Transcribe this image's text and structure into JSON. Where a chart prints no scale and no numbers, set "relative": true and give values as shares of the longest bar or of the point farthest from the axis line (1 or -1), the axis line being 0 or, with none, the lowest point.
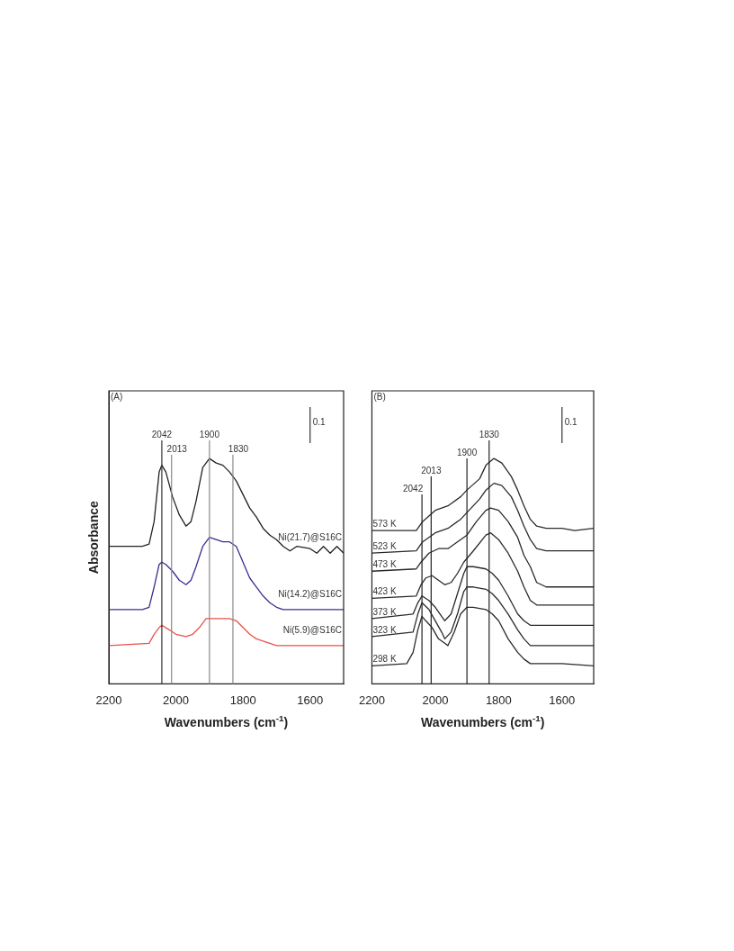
{
  "chart_data": [
    {
      "type": "line",
      "relative": true,
      "xlabel": "Wavenumbers (cm$^{-1}$)",
      "ylabel": "Absorbance",
      "xlim": [
        2200,
        1500
      ],
      "xticks": [
        2200,
        2000,
        1800,
        1600
      ],
      "tick_labels": "x",
      "legend": false,
      "grid": false,
      "annotations": [
        "(A)",
        "0.1"
      ],
      "ref_lines": [
        {
          "axis": "x",
          "value": 2042,
          "label": "2042",
          "color": "#333333"
        },
        {
          "axis": "x",
          "value": 2013,
          "label": "2013",
          "color": "#8a8a8a"
        },
        {
          "axis": "x",
          "value": 1900,
          "label": "1900",
          "color": "#8a8a8a"
        },
        {
          "axis": "x",
          "value": 1830,
          "label": "1830",
          "color": "#8a8a8a"
        }
      ],
      "series": [
        {
          "name": "Ni(21.7)@S16C",
          "color": "#222222",
          "x": [
            2200,
            2100,
            2080,
            2065,
            2050,
            2042,
            2030,
            2010,
            1990,
            1970,
            1955,
            1940,
            1920,
            1900,
            1880,
            1860,
            1840,
            1820,
            1800,
            1780,
            1760,
            1740,
            1720,
            1700,
            1680,
            1660,
            1640,
            1600,
            1580,
            1560,
            1540,
            1520,
            1500
          ],
          "values": [
            0.61,
            0.61,
            0.62,
            0.72,
            0.94,
            0.97,
            0.94,
            0.83,
            0.75,
            0.7,
            0.72,
            0.81,
            0.96,
            1,
            0.98,
            0.97,
            0.94,
            0.9,
            0.84,
            0.78,
            0.74,
            0.69,
            0.66,
            0.64,
            0.61,
            0.59,
            0.61,
            0.6,
            0.58,
            0.61,
            0.58,
            0.61,
            0.58
          ]
        },
        {
          "name": "Ni(14.2)@S16C",
          "color": "#3a2f8f",
          "x": [
            2200,
            2100,
            2080,
            2065,
            2050,
            2042,
            2030,
            2010,
            1990,
            1970,
            1955,
            1940,
            1920,
            1900,
            1880,
            1860,
            1840,
            1820,
            1800,
            1780,
            1760,
            1740,
            1720,
            1700,
            1680,
            1600,
            1500
          ],
          "values": [
            0.33,
            0.33,
            0.34,
            0.43,
            0.53,
            0.54,
            0.53,
            0.5,
            0.46,
            0.44,
            0.46,
            0.52,
            0.61,
            0.65,
            0.64,
            0.63,
            0.63,
            0.61,
            0.54,
            0.47,
            0.43,
            0.39,
            0.36,
            0.34,
            0.33,
            0.33,
            0.33
          ]
        },
        {
          "name": "Ni(5.9)@S16C",
          "color": "#e8524a",
          "x": [
            2200,
            2080,
            2065,
            2050,
            2042,
            2020,
            2000,
            1970,
            1950,
            1930,
            1910,
            1900,
            1860,
            1840,
            1820,
            1800,
            1780,
            1760,
            1740,
            1700,
            1500
          ],
          "values": [
            0.17,
            0.18,
            0.22,
            0.25,
            0.26,
            0.24,
            0.22,
            0.21,
            0.22,
            0.25,
            0.29,
            0.29,
            0.29,
            0.29,
            0.28,
            0.25,
            0.22,
            0.2,
            0.19,
            0.17,
            0.17
          ]
        }
      ]
    },
    {
      "type": "line",
      "relative": true,
      "xlabel": "Wavenumbers (cm$^{-1}$)",
      "xlim": [
        2200,
        1500
      ],
      "xticks": [
        2200,
        2000,
        1800,
        1600
      ],
      "tick_labels": "x",
      "legend": false,
      "grid": false,
      "annotations": [
        "(B)",
        "0.1"
      ],
      "ref_lines": [
        {
          "axis": "x",
          "value": 2042,
          "label": "2042",
          "color": "#222222"
        },
        {
          "axis": "x",
          "value": 2013,
          "label": "2013",
          "color": "#222222"
        },
        {
          "axis": "x",
          "value": 1900,
          "label": "1900",
          "color": "#222222"
        },
        {
          "axis": "x",
          "value": 1830,
          "label": "1830",
          "color": "#222222"
        }
      ],
      "series": [
        {
          "name": "573 K",
          "color": "#2a2a2a",
          "x": [
            2200,
            2060,
            2040,
            2000,
            1960,
            1920,
            1900,
            1860,
            1840,
            1815,
            1790,
            1760,
            1740,
            1720,
            1700,
            1680,
            1650,
            1600,
            1560,
            1500
          ],
          "values": [
            0.68,
            0.68,
            0.72,
            0.77,
            0.79,
            0.83,
            0.86,
            0.91,
            0.97,
            1,
            0.98,
            0.92,
            0.86,
            0.79,
            0.73,
            0.7,
            0.69,
            0.69,
            0.68,
            0.69
          ]
        },
        {
          "name": "523 K",
          "color": "#2a2a2a",
          "x": [
            2200,
            2060,
            2040,
            2000,
            1960,
            1920,
            1900,
            1860,
            1840,
            1815,
            1790,
            1760,
            1740,
            1720,
            1700,
            1680,
            1650,
            1600,
            1500
          ],
          "values": [
            0.58,
            0.59,
            0.63,
            0.67,
            0.69,
            0.73,
            0.76,
            0.82,
            0.86,
            0.89,
            0.88,
            0.83,
            0.77,
            0.7,
            0.64,
            0.6,
            0.59,
            0.59,
            0.59
          ]
        },
        {
          "name": "473 K",
          "color": "#2a2a2a",
          "x": [
            2200,
            2060,
            2045,
            2020,
            1990,
            1960,
            1930,
            1900,
            1870,
            1840,
            1825,
            1800,
            1770,
            1740,
            1720,
            1700,
            1680,
            1650,
            1600,
            1500
          ],
          "values": [
            0.5,
            0.51,
            0.54,
            0.58,
            0.6,
            0.6,
            0.63,
            0.66,
            0.72,
            0.77,
            0.78,
            0.77,
            0.72,
            0.65,
            0.57,
            0.52,
            0.45,
            0.43,
            0.43,
            0.43
          ]
        },
        {
          "name": "423 K",
          "color": "#2a2a2a",
          "x": [
            2200,
            2060,
            2045,
            2030,
            2010,
            1990,
            1970,
            1950,
            1930,
            1910,
            1880,
            1840,
            1825,
            1800,
            1770,
            1740,
            1720,
            1700,
            1680,
            1600,
            1500
          ],
          "values": [
            0.38,
            0.39,
            0.44,
            0.47,
            0.48,
            0.46,
            0.44,
            0.45,
            0.49,
            0.54,
            0.59,
            0.66,
            0.67,
            0.64,
            0.58,
            0.5,
            0.43,
            0.37,
            0.35,
            0.35,
            0.35
          ]
        },
        {
          "name": "373 K",
          "color": "#2a2a2a",
          "x": [
            2200,
            2070,
            2055,
            2042,
            2020,
            2000,
            1980,
            1970,
            1950,
            1930,
            1910,
            1900,
            1880,
            1840,
            1820,
            1800,
            1770,
            1740,
            1720,
            1700,
            1600,
            1500
          ],
          "values": [
            0.29,
            0.31,
            0.36,
            0.39,
            0.37,
            0.34,
            0.3,
            0.28,
            0.31,
            0.4,
            0.49,
            0.52,
            0.52,
            0.51,
            0.49,
            0.46,
            0.39,
            0.31,
            0.28,
            0.26,
            0.26,
            0.26
          ]
        },
        {
          "name": "323 K",
          "color": "#2a2a2a",
          "x": [
            2200,
            2070,
            2055,
            2042,
            2020,
            2000,
            1980,
            1970,
            1950,
            1930,
            1910,
            1900,
            1880,
            1840,
            1820,
            1800,
            1770,
            1740,
            1720,
            1700,
            1600,
            1500
          ],
          "values": [
            0.21,
            0.23,
            0.31,
            0.36,
            0.33,
            0.28,
            0.23,
            0.2,
            0.23,
            0.31,
            0.41,
            0.43,
            0.43,
            0.42,
            0.4,
            0.37,
            0.31,
            0.24,
            0.2,
            0.17,
            0.17,
            0.17
          ]
        },
        {
          "name": "298 K",
          "color": "#2a2a2a",
          "x": [
            2200,
            2090,
            2070,
            2055,
            2042,
            2030,
            2010,
            1990,
            1970,
            1960,
            1940,
            1920,
            1900,
            1880,
            1840,
            1820,
            1800,
            1770,
            1740,
            1720,
            1700,
            1600,
            1500
          ],
          "values": [
            0.08,
            0.09,
            0.14,
            0.24,
            0.3,
            0.28,
            0.25,
            0.2,
            0.18,
            0.17,
            0.23,
            0.31,
            0.34,
            0.34,
            0.33,
            0.31,
            0.28,
            0.2,
            0.14,
            0.11,
            0.09,
            0.09,
            0.08
          ]
        }
      ]
    }
  ]
}
